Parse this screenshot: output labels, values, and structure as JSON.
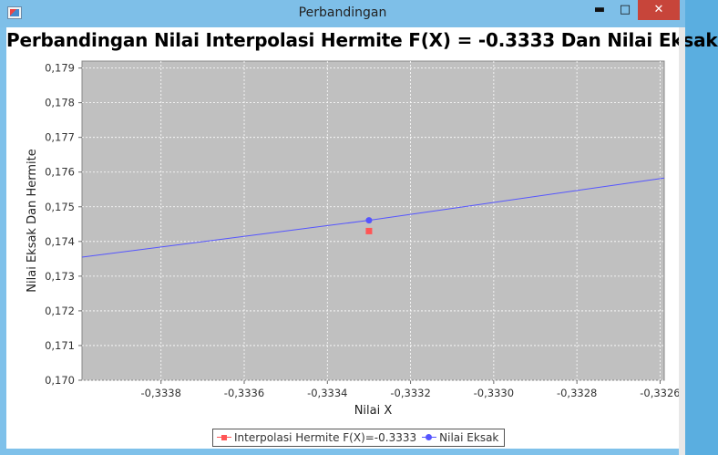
{
  "window": {
    "title": "Perbandingan",
    "min_glyph": "▬",
    "max_glyph": "□",
    "close_glyph": "✕",
    "icon": "java-app-icon"
  },
  "chart_data": {
    "type": "line",
    "title": "Perbandingan Nilai Interpolasi Hermite F(X) = -0.3333 Dan Nilai Eksak",
    "xlabel": "Nilai X",
    "ylabel": "Nilai Eksak Dan Hermite",
    "xlim": [
      -0.33399,
      -0.33259
    ],
    "ylim": [
      0.17,
      0.1792
    ],
    "xticks": [
      -0.3338,
      -0.3336,
      -0.3334,
      -0.3332,
      -0.333,
      -0.3328,
      -0.3326
    ],
    "xtick_labels": [
      "-0,3338",
      "-0,3336",
      "-0,3334",
      "-0,3332",
      "-0,3330",
      "-0,3328",
      "-0,3326"
    ],
    "yticks": [
      0.17,
      0.171,
      0.172,
      0.173,
      0.174,
      0.175,
      0.176,
      0.177,
      0.178,
      0.179
    ],
    "ytick_labels": [
      "0,170",
      "0,171",
      "0,172",
      "0,173",
      "0,174",
      "0,175",
      "0,176",
      "0,177",
      "0,178",
      "0,179"
    ],
    "grid": true,
    "plot_background": "#c0c0c0",
    "legend_position": "bottom",
    "series": [
      {
        "name": "Interpolasi Hermite F(X)=-0.3333",
        "color": "#ff5555",
        "marker": "square",
        "points": [
          {
            "x": -0.3333,
            "y": 0.1743
          }
        ]
      },
      {
        "name": "Nilai Eksak",
        "color": "#5555ff",
        "marker": "circle",
        "points": [
          {
            "x": -0.33399,
            "y": 0.17355
          },
          {
            "x": -0.3333,
            "y": 0.17461
          },
          {
            "x": -0.33259,
            "y": 0.17583
          }
        ],
        "marked_point_index": 1
      }
    ]
  }
}
